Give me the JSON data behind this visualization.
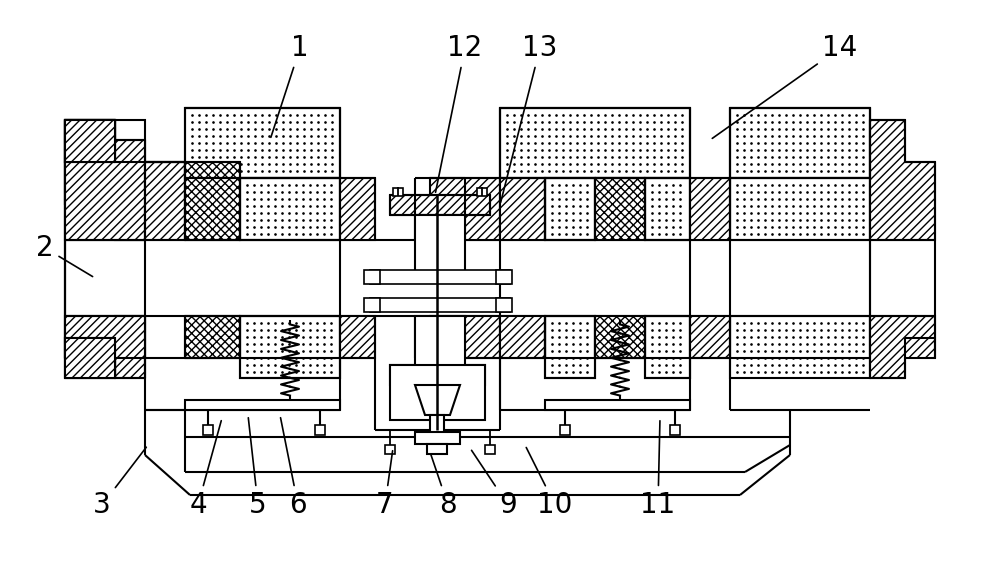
{
  "bg_color": "#ffffff",
  "lw": 1.5,
  "label_fontsize": 20,
  "labels": [
    [
      "1",
      300,
      48,
      270,
      140
    ],
    [
      "2",
      45,
      248,
      95,
      278
    ],
    [
      "3",
      102,
      505,
      148,
      445
    ],
    [
      "4",
      198,
      505,
      222,
      418
    ],
    [
      "5",
      258,
      505,
      248,
      415
    ],
    [
      "6",
      298,
      505,
      280,
      415
    ],
    [
      "7",
      385,
      505,
      393,
      448
    ],
    [
      "8",
      448,
      505,
      430,
      452
    ],
    [
      "9",
      508,
      505,
      470,
      448
    ],
    [
      "10",
      555,
      505,
      525,
      445
    ],
    [
      "11",
      658,
      505,
      660,
      418
    ],
    [
      "12",
      465,
      48,
      435,
      195
    ],
    [
      "13",
      540,
      48,
      500,
      205
    ],
    [
      "14",
      840,
      48,
      710,
      140
    ]
  ]
}
